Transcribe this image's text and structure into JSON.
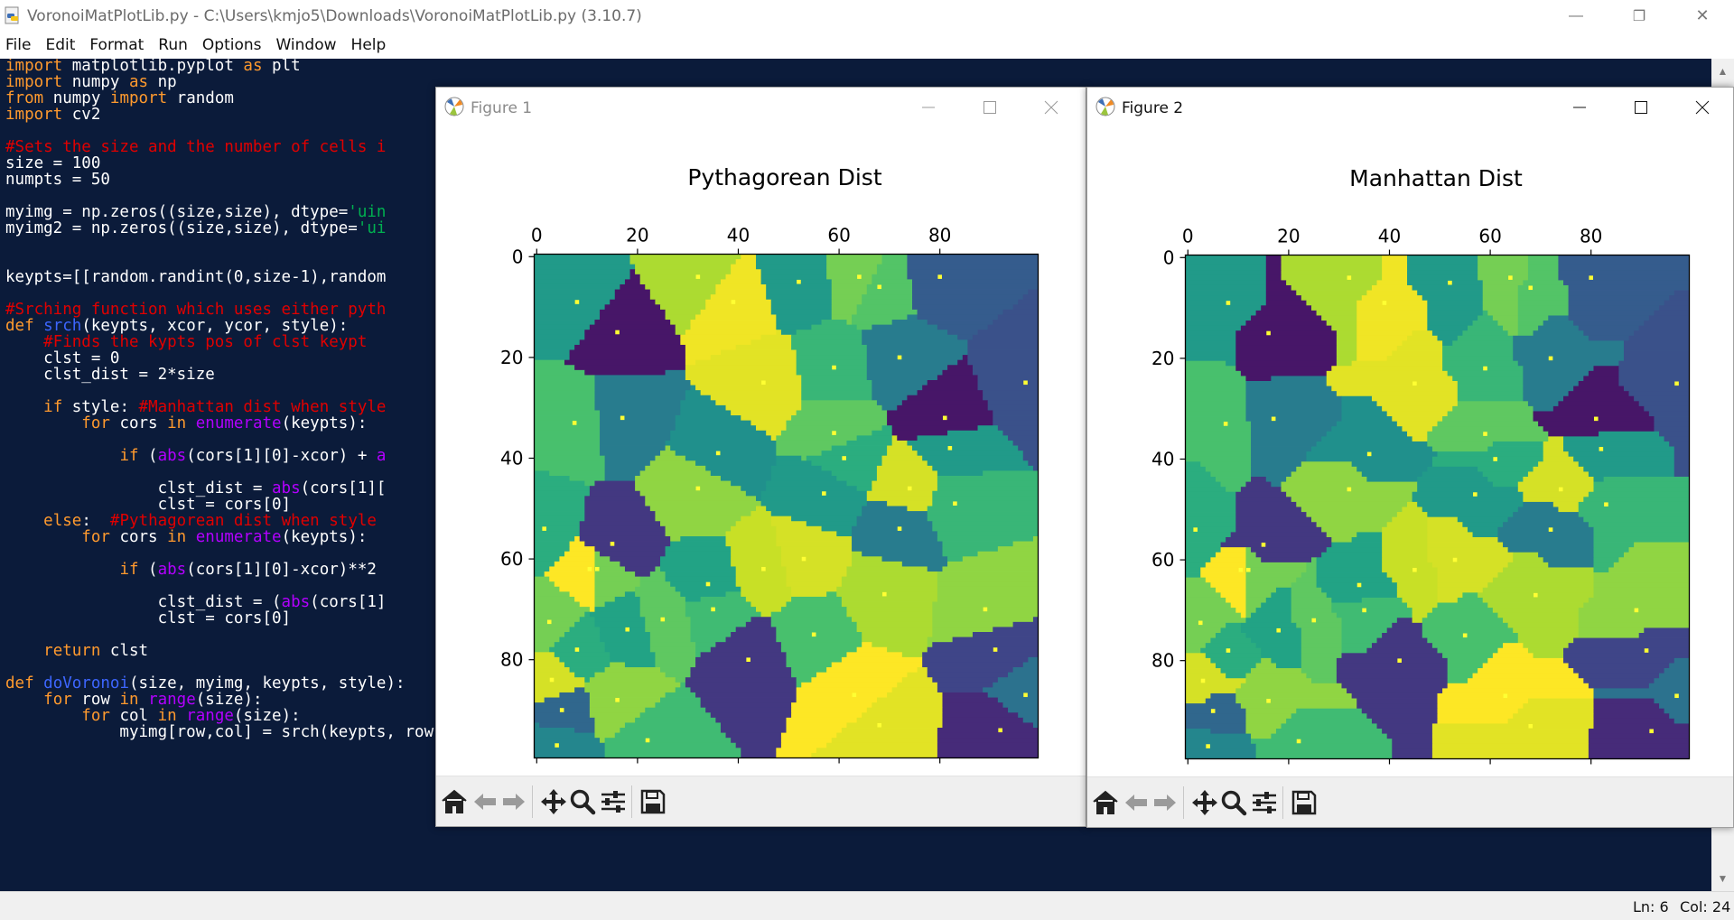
{
  "window": {
    "title": "VoronoiMatPlotLib.py - C:\\Users\\kmjo5\\Downloads\\VoronoiMatPlotLib.py (3.10.7)",
    "minimize_glyph": "—",
    "restore_glyph": "❐",
    "close_glyph": "✕"
  },
  "menu": [
    "File",
    "Edit",
    "Format",
    "Run",
    "Options",
    "Window",
    "Help"
  ],
  "code": {
    "colors": {
      "background": "#0b1b3a",
      "keyword": "#ff9a2e",
      "builtin": "#b300ff",
      "comment": "#e00000",
      "defname": "#3d66ff",
      "string": "#00b050",
      "text": "#ffffff"
    },
    "lines": [
      [
        [
          "kw",
          "import"
        ],
        [
          "t",
          " matplotlib.pyplot "
        ],
        [
          "kw",
          "as"
        ],
        [
          "t",
          " plt"
        ]
      ],
      [
        [
          "kw",
          "import"
        ],
        [
          "t",
          " numpy "
        ],
        [
          "kw",
          "as"
        ],
        [
          "t",
          " np"
        ]
      ],
      [
        [
          "kw",
          "from"
        ],
        [
          "t",
          " numpy "
        ],
        [
          "kw",
          "import"
        ],
        [
          "t",
          " random"
        ]
      ],
      [
        [
          "kw",
          "import"
        ],
        [
          "t",
          " cv2"
        ]
      ],
      [],
      [
        [
          "cm",
          "#Sets the size and the number of cells i"
        ]
      ],
      [
        [
          "t",
          "size = 100"
        ]
      ],
      [
        [
          "t",
          "numpts = 50"
        ]
      ],
      [],
      [
        [
          "t",
          "myimg = np.zeros((size,size), dtype="
        ],
        [
          "st",
          "'uin"
        ]
      ],
      [
        [
          "t",
          "myimg2 = np.zeros((size,size), dtype="
        ],
        [
          "st",
          "'ui"
        ]
      ],
      [],
      [],
      [
        [
          "t",
          "keypts=[[random.randint(0,size-1),random"
        ]
      ],
      [],
      [
        [
          "cm",
          "#Srching function which uses either pyth"
        ]
      ],
      [
        [
          "kw",
          "def"
        ],
        [
          "t",
          " "
        ],
        [
          "fn",
          "srch"
        ],
        [
          "t",
          "(keypts, xcor, ycor, style):"
        ]
      ],
      [
        [
          "t",
          "    "
        ],
        [
          "cm",
          "#Finds the kypts pos of clst keypt"
        ]
      ],
      [
        [
          "t",
          "    clst = 0"
        ]
      ],
      [
        [
          "t",
          "    clst_dist = 2*size"
        ]
      ],
      [],
      [
        [
          "t",
          "    "
        ],
        [
          "kw",
          "if"
        ],
        [
          "t",
          " style: "
        ],
        [
          "cm",
          "#Manhattan dist when style"
        ]
      ],
      [
        [
          "t",
          "        "
        ],
        [
          "kw",
          "for"
        ],
        [
          "t",
          " cors "
        ],
        [
          "kw",
          "in"
        ],
        [
          "t",
          " "
        ],
        [
          "bi",
          "enumerate"
        ],
        [
          "t",
          "(keypts):"
        ]
      ],
      [],
      [
        [
          "t",
          "            "
        ],
        [
          "kw",
          "if"
        ],
        [
          "t",
          " ("
        ],
        [
          "bi",
          "abs"
        ],
        [
          "t",
          "(cors[1][0]-xcor) + "
        ],
        [
          "bi",
          "a"
        ]
      ],
      [],
      [
        [
          "t",
          "                clst_dist = "
        ],
        [
          "bi",
          "abs"
        ],
        [
          "t",
          "(cors[1]["
        ]
      ],
      [
        [
          "t",
          "                clst = cors[0]"
        ]
      ],
      [
        [
          "t",
          "    "
        ],
        [
          "kw",
          "else"
        ],
        [
          "t",
          ":  "
        ],
        [
          "cm",
          "#Pythagorean dist when style"
        ]
      ],
      [
        [
          "t",
          "        "
        ],
        [
          "kw",
          "for"
        ],
        [
          "t",
          " cors "
        ],
        [
          "kw",
          "in"
        ],
        [
          "t",
          " "
        ],
        [
          "bi",
          "enumerate"
        ],
        [
          "t",
          "(keypts):"
        ]
      ],
      [],
      [
        [
          "t",
          "            "
        ],
        [
          "kw",
          "if"
        ],
        [
          "t",
          " ("
        ],
        [
          "bi",
          "abs"
        ],
        [
          "t",
          "(cors[1][0]-xcor)**2"
        ]
      ],
      [],
      [
        [
          "t",
          "                clst_dist = ("
        ],
        [
          "bi",
          "abs"
        ],
        [
          "t",
          "(cors[1]"
        ]
      ],
      [
        [
          "t",
          "                clst = cors[0]"
        ]
      ],
      [],
      [
        [
          "t",
          "    "
        ],
        [
          "kw",
          "return"
        ],
        [
          "t",
          " clst"
        ]
      ],
      [],
      [
        [
          "kw",
          "def"
        ],
        [
          "t",
          " "
        ],
        [
          "fn",
          "doVoronoi"
        ],
        [
          "t",
          "(size, myimg, keypts, style):"
        ]
      ],
      [
        [
          "t",
          "    "
        ],
        [
          "kw",
          "for"
        ],
        [
          "t",
          " row "
        ],
        [
          "kw",
          "in"
        ],
        [
          "t",
          " "
        ],
        [
          "bi",
          "range"
        ],
        [
          "t",
          "(size):"
        ]
      ],
      [
        [
          "t",
          "        "
        ],
        [
          "kw",
          "for"
        ],
        [
          "t",
          " col "
        ],
        [
          "kw",
          "in"
        ],
        [
          "t",
          " "
        ],
        [
          "bi",
          "range"
        ],
        [
          "t",
          "(size):"
        ]
      ],
      [
        [
          "t",
          "            myimg[row,col] = srch(keypts, row, col, style)"
        ]
      ]
    ]
  },
  "status": {
    "line": "Ln: 6",
    "col": "Col: 24"
  },
  "figures": [
    {
      "window_title": "Figure 1",
      "active": false,
      "chart_data": {
        "type": "heatmap",
        "title": "Pythagorean Dist",
        "colormap": "viridis",
        "distance": "euclidean",
        "grid_size": 100,
        "xticks": [
          0,
          20,
          40,
          60,
          80
        ],
        "yticks": [
          0,
          20,
          40,
          60,
          80
        ],
        "x_axis_position": "top",
        "xlim": [
          0,
          100
        ],
        "ylim": [
          100,
          0
        ],
        "seed_color": "#ffff33"
      }
    },
    {
      "window_title": "Figure 2",
      "active": true,
      "chart_data": {
        "type": "heatmap",
        "title": "Manhattan Dist",
        "colormap": "viridis",
        "distance": "manhattan",
        "grid_size": 100,
        "xticks": [
          0,
          20,
          40,
          60,
          80
        ],
        "yticks": [
          0,
          20,
          40,
          60,
          80
        ],
        "x_axis_position": "top",
        "xlim": [
          0,
          100
        ],
        "ylim": [
          100,
          0
        ],
        "seed_color": "#ffff33"
      }
    }
  ],
  "seeds": [
    [
      1.5,
      54
    ],
    [
      2.5,
      72.5
    ],
    [
      3,
      84
    ],
    [
      5,
      90
    ],
    [
      4,
      97
    ],
    [
      7.5,
      33
    ],
    [
      8,
      9
    ],
    [
      10.5,
      62
    ],
    [
      12,
      62
    ],
    [
      15,
      57
    ],
    [
      16,
      15
    ],
    [
      17,
      32
    ],
    [
      16,
      88
    ],
    [
      18,
      74
    ],
    [
      22,
      96
    ],
    [
      32,
      4
    ],
    [
      32,
      46
    ],
    [
      34,
      65
    ],
    [
      35,
      70
    ],
    [
      36,
      39
    ],
    [
      39,
      9
    ],
    [
      42,
      80
    ],
    [
      45,
      25
    ],
    [
      52,
      5
    ],
    [
      53,
      60
    ],
    [
      57,
      47
    ],
    [
      59,
      35
    ],
    [
      59,
      22
    ],
    [
      61,
      40
    ],
    [
      63,
      87
    ],
    [
      64,
      4
    ],
    [
      68,
      6
    ],
    [
      69,
      67
    ],
    [
      68,
      93
    ],
    [
      72,
      54
    ],
    [
      74,
      46
    ],
    [
      80,
      4
    ],
    [
      81,
      32
    ],
    [
      82,
      38
    ],
    [
      83,
      49
    ],
    [
      89,
      70
    ],
    [
      92,
      94
    ],
    [
      91,
      78
    ],
    [
      97,
      87
    ],
    [
      97,
      25
    ],
    [
      8,
      78
    ],
    [
      25,
      72
    ],
    [
      55,
      75
    ],
    [
      45,
      62
    ],
    [
      72,
      20
    ]
  ],
  "seed_values": [
    30,
    38,
    45,
    16,
    22,
    34,
    26,
    48,
    38,
    8,
    3,
    20,
    40,
    28,
    33,
    42,
    40,
    28,
    33,
    24,
    47,
    8,
    46,
    26,
    45,
    26,
    36,
    32,
    30,
    48,
    38,
    35,
    42,
    46,
    20,
    45,
    14,
    3,
    26,
    32,
    40,
    6,
    10,
    18,
    12,
    30,
    36,
    34,
    44,
    20
  ]
}
